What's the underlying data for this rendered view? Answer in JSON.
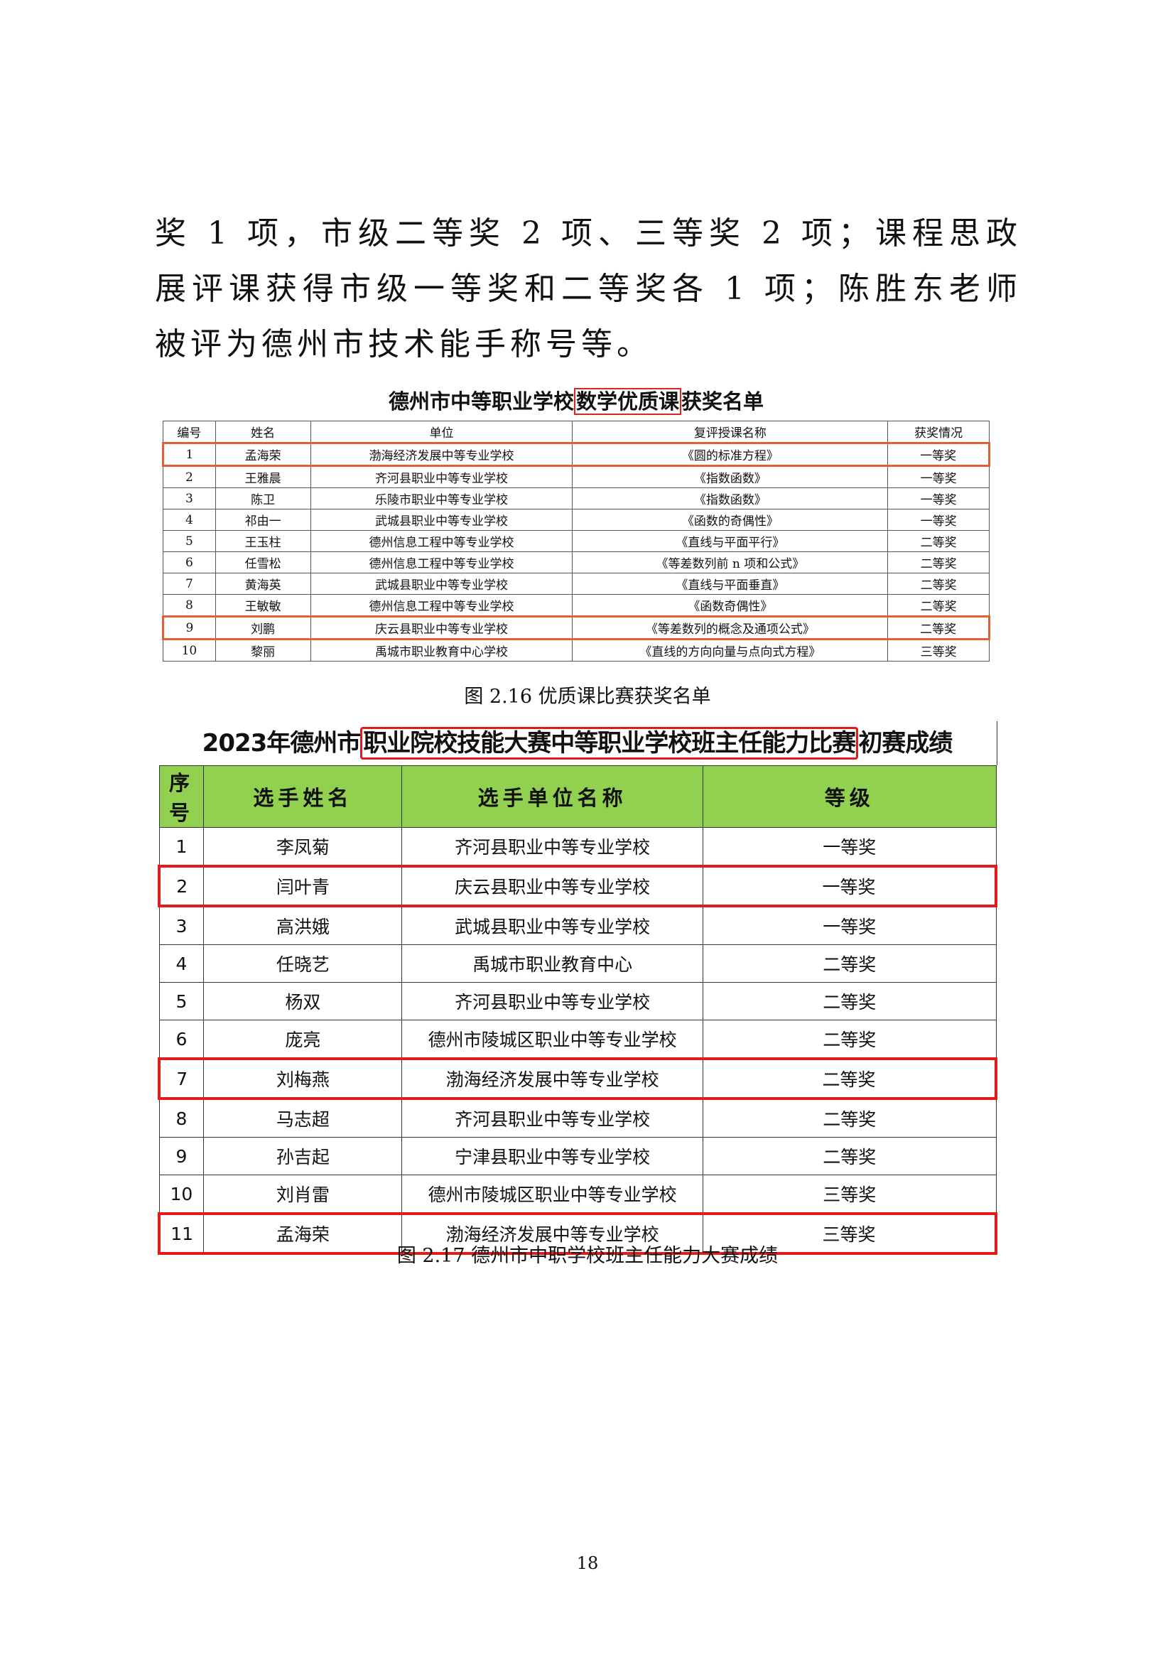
{
  "paragraph": "奖 1 项，市级二等奖 2 项、三等奖 2 项；课程思政展评课获得市级一等奖和二等奖各 1 项；陈胜东老师被评为德州市技术能手称号等。",
  "table1": {
    "title_pre": "德州市中等职业学校",
    "title_highlight": "数学优质课",
    "title_post": "获奖名单",
    "headers": [
      "编号",
      "姓名",
      "单位",
      "复评授课名称",
      "获奖情况"
    ],
    "rows": [
      [
        "1",
        "孟海荣",
        "渤海经济发展中等专业学校",
        "《圆的标准方程》",
        "一等奖"
      ],
      [
        "2",
        "王雅晨",
        "齐河县职业中等专业学校",
        "《指数函数》",
        "一等奖"
      ],
      [
        "3",
        "陈卫",
        "乐陵市职业中等专业学校",
        "《指数函数》",
        "一等奖"
      ],
      [
        "4",
        "祁由一",
        "武城县职业中等专业学校",
        "《函数的奇偶性》",
        "一等奖"
      ],
      [
        "5",
        "王玉柱",
        "德州信息工程中等专业学校",
        "《直线与平面平行》",
        "二等奖"
      ],
      [
        "6",
        "任雪松",
        "德州信息工程中等专业学校",
        "《等差数列前 n 项和公式》",
        "二等奖"
      ],
      [
        "7",
        "黄海英",
        "武城县职业中等专业学校",
        "《直线与平面垂直》",
        "二等奖"
      ],
      [
        "8",
        "王敏敏",
        "德州信息工程中等专业学校",
        "《函数奇偶性》",
        "二等奖"
      ],
      [
        "9",
        "刘鹏",
        "庆云县职业中等专业学校",
        "《等差数列的概念及通项公式》",
        "二等奖"
      ],
      [
        "10",
        "黎丽",
        "禹城市职业教育中心学校",
        "《直线的方向向量与点向式方程》",
        "三等奖"
      ]
    ],
    "highlighted_rows": [
      "1",
      "9"
    ]
  },
  "caption1": "图 2.16  优质课比赛获奖名单",
  "table2": {
    "title_pre": "2023年德州市",
    "title_highlight": "职业院校技能大赛中等职业学校班主任能力比赛",
    "title_post": "初赛成绩",
    "headers": [
      "序号",
      "选手姓名",
      "选手单位名称",
      "等级"
    ],
    "rows": [
      [
        "1",
        "李凤菊",
        "齐河县职业中等专业学校",
        "一等奖"
      ],
      [
        "2",
        "闫叶青",
        "庆云县职业中等专业学校",
        "一等奖"
      ],
      [
        "3",
        "高洪娥",
        "武城县职业中等专业学校",
        "一等奖"
      ],
      [
        "4",
        "任晓艺",
        "禹城市职业教育中心",
        "二等奖"
      ],
      [
        "5",
        "杨双",
        "齐河县职业中等专业学校",
        "二等奖"
      ],
      [
        "6",
        "庞亮",
        "德州市陵城区职业中等专业学校",
        "二等奖"
      ],
      [
        "7",
        "刘梅燕",
        "渤海经济发展中等专业学校",
        "二等奖"
      ],
      [
        "8",
        "马志超",
        "齐河县职业中等专业学校",
        "二等奖"
      ],
      [
        "9",
        "孙吉起",
        "宁津县职业中等专业学校",
        "二等奖"
      ],
      [
        "10",
        "刘肖雷",
        "德州市陵城区职业中等专业学校",
        "三等奖"
      ],
      [
        "11",
        "孟海荣",
        "渤海经济发展中等专业学校",
        "三等奖"
      ]
    ],
    "highlighted_rows": [
      "2",
      "7",
      "11"
    ],
    "header_color": "#92d050",
    "highlight_color": "#e21b1b"
  },
  "caption2": "图 2.17  德州市中职学校班主任能力大赛成绩",
  "page_number": "18"
}
